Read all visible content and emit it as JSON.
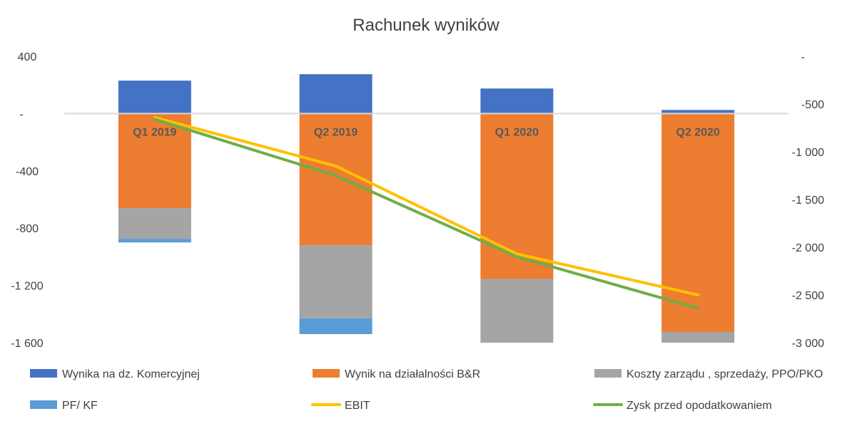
{
  "chart_data": {
    "type": "bar",
    "title": "Rachunek wyników",
    "categories": [
      "Q1 2019",
      "Q2 2019",
      "Q1 2020",
      "Q2 2020"
    ],
    "bar_mode": "stacked",
    "y_left": {
      "min": -1600,
      "max": 400,
      "step": 400,
      "tick_labels": [
        "400",
        "-",
        "-400",
        "-800",
        "-1 200",
        "-1 600"
      ]
    },
    "y_right": {
      "min": -3000,
      "max": 0,
      "step": 500,
      "tick_labels": [
        "-",
        "-500",
        "-1 000",
        "-1 500",
        "-2 000",
        "-2 500",
        "-3 000"
      ]
    },
    "series": [
      {
        "name": "Wynika na dz. Komercyjnej",
        "type": "bar",
        "axis": "left",
        "color": "#4472C4",
        "values": [
          230,
          275,
          175,
          25
        ]
      },
      {
        "name": "Wynik na działalności B&R",
        "type": "bar",
        "axis": "left",
        "color": "#ED7D31",
        "values": [
          -660,
          -920,
          -1155,
          -1525
        ]
      },
      {
        "name": "Koszty zarządu , sprzedaży, PPO/PKO",
        "type": "bar",
        "axis": "left",
        "color": "#A5A5A5",
        "values": [
          -215,
          -510,
          -445,
          -75
        ]
      },
      {
        "name": "PF/ KF",
        "type": "bar",
        "axis": "left",
        "color": "#5B9BD5",
        "values": [
          -25,
          -110,
          0,
          0
        ]
      },
      {
        "name": "EBIT",
        "type": "line",
        "axis": "right",
        "color": "#FFC000",
        "values": [
          -640,
          -1150,
          -2070,
          -2500
        ]
      },
      {
        "name": "Zysk przed opodatkowaniem",
        "type": "line",
        "axis": "right",
        "color": "#70AD47",
        "values": [
          -660,
          -1250,
          -2100,
          -2640
        ]
      }
    ],
    "legend_position": "bottom",
    "grid": false
  }
}
